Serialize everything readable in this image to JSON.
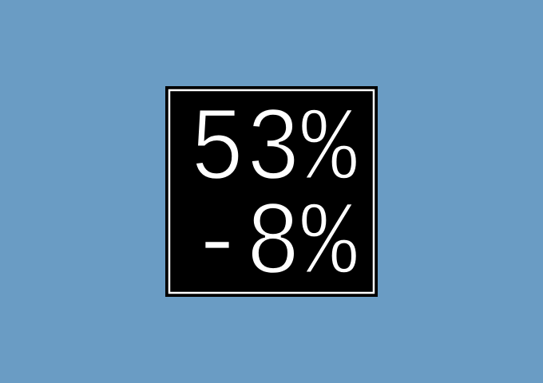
{
  "display": {
    "lines": [
      "53%",
      "-8%"
    ]
  }
}
